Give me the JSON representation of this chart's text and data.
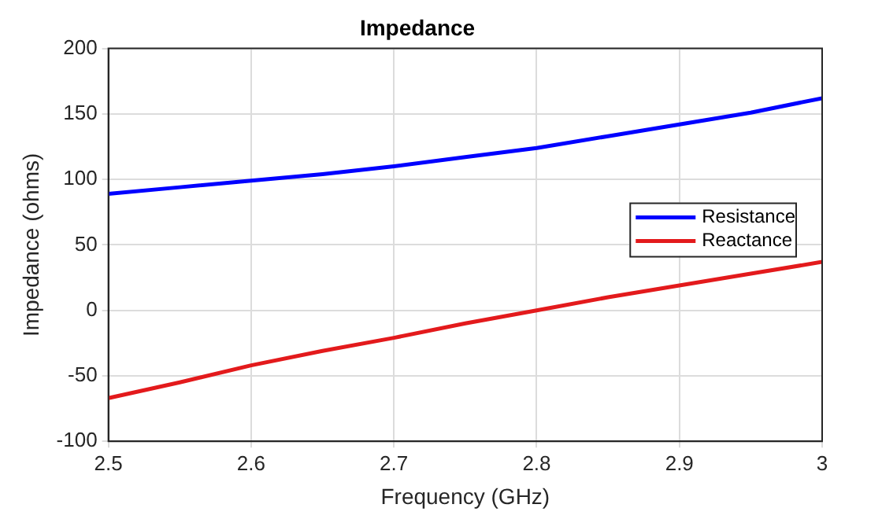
{
  "chart_data": {
    "type": "line",
    "title": "Impedance",
    "xlabel": "Frequency (GHz)",
    "ylabel": "Impedance (ohms)",
    "x": [
      2.5,
      2.55,
      2.6,
      2.65,
      2.7,
      2.75,
      2.8,
      2.85,
      2.9,
      2.95,
      3.0
    ],
    "series": [
      {
        "name": "Resistance",
        "color": "#0000ff",
        "values": [
          89,
          94,
          99,
          104,
          110,
          117,
          124,
          133,
          142,
          151,
          162
        ]
      },
      {
        "name": "Reactance",
        "color": "#e31a1c",
        "values": [
          -67,
          -55,
          -42,
          -31,
          -21,
          -10,
          0,
          10,
          19,
          28,
          37
        ]
      }
    ],
    "xlim": [
      2.5,
      3
    ],
    "xticks": [
      2.5,
      2.6,
      2.7,
      2.8,
      2.9,
      3
    ],
    "ylim": [
      -100,
      200
    ],
    "yticks": [
      -100,
      -50,
      0,
      50,
      100,
      150,
      200
    ],
    "grid": true,
    "legend": "right",
    "marker": "none",
    "line_style": "solid"
  }
}
